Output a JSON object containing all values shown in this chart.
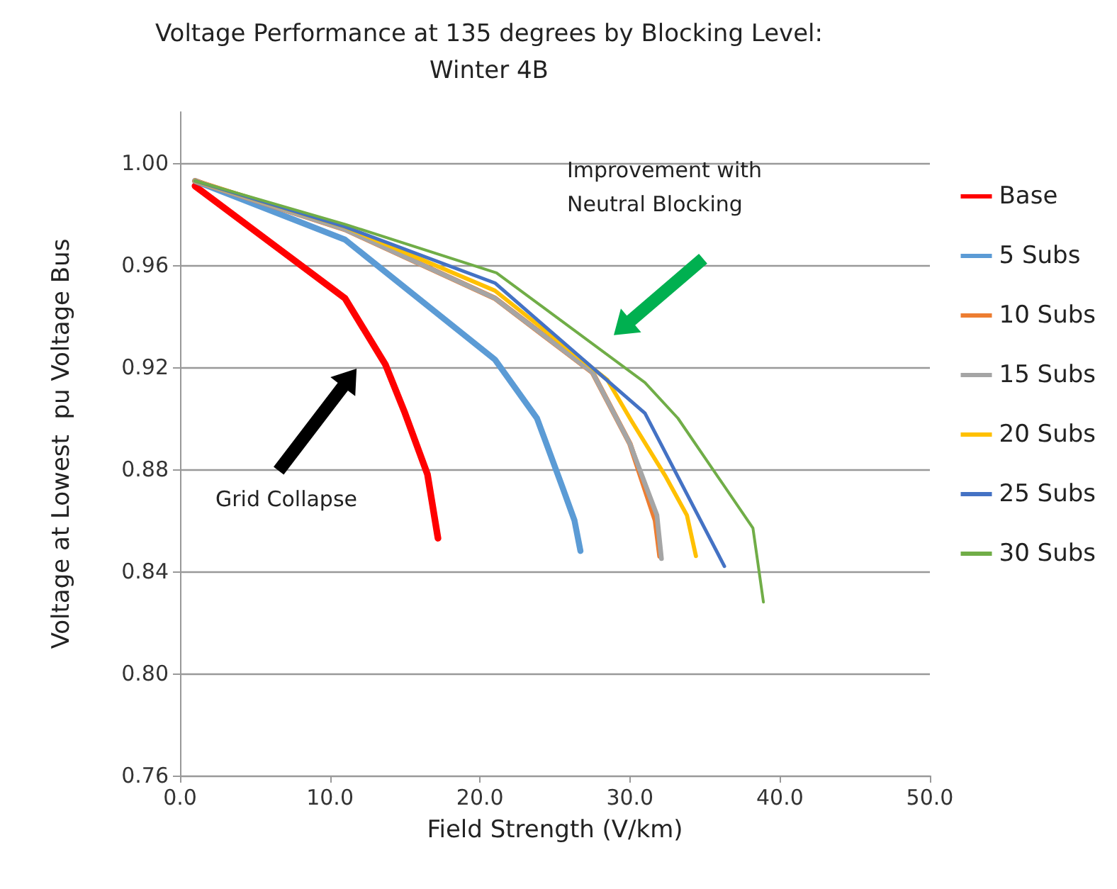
{
  "chart_data": {
    "type": "line",
    "title": "Voltage Performance at 135 degrees by Blocking Level:\nWinter 4B",
    "xlabel": "Field Strength (V/km)",
    "ylabel": "Voltage at Lowest  pu Voltage Bus",
    "xlim": [
      0,
      50
    ],
    "xticks": [
      {
        "value": 0,
        "label": "0.0"
      },
      {
        "value": 10,
        "label": "10.0"
      },
      {
        "value": 20,
        "label": "20.0"
      },
      {
        "value": 30,
        "label": "30.0"
      },
      {
        "value": 40,
        "label": "40.0"
      },
      {
        "value": 50,
        "label": "50.0"
      }
    ],
    "ylim": [
      0.76,
      1.02
    ],
    "yticks": [
      {
        "value": 0.76,
        "label": "0.76"
      },
      {
        "value": 0.8,
        "label": "0.80"
      },
      0.84,
      0.88,
      0.92,
      0.96,
      {
        "value": 1.0,
        "label": "1.00"
      }
    ],
    "grid": "y",
    "legend": "right",
    "marker": "none",
    "line_style": "solid",
    "annotations": [
      "Grid Collapse",
      "Improvement with\nNeutral Blocking"
    ],
    "series": [
      {
        "name": "Base",
        "color": "#ff0000",
        "x": [
          1,
          11,
          13.7,
          15,
          16.5,
          17.2
        ],
        "values": [
          0.991,
          0.947,
          0.921,
          0.902,
          0.878,
          0.853
        ]
      },
      {
        "name": "5 Subs",
        "color": "#5b9bd5",
        "x": [
          1,
          11,
          21,
          23.8,
          25.5,
          26.3,
          26.7
        ],
        "values": [
          0.993,
          0.97,
          0.923,
          0.9,
          0.873,
          0.86,
          0.848
        ]
      },
      {
        "name": "10 Subs",
        "color": "#ed7d31",
        "x": [
          1,
          11,
          21,
          27.5,
          30,
          31.7,
          32
        ],
        "values": [
          0.993,
          0.974,
          0.947,
          0.918,
          0.89,
          0.86,
          0.846
        ]
      },
      {
        "name": "15 Subs",
        "color": "#a5a5a5",
        "x": [
          1,
          11,
          21,
          27.5,
          30,
          31.8,
          32.1
        ],
        "values": [
          0.993,
          0.974,
          0.947,
          0.918,
          0.89,
          0.862,
          0.845
        ]
      },
      {
        "name": "20 Subs",
        "color": "#ffc000",
        "x": [
          1,
          11,
          21,
          28.5,
          30.1,
          32.4,
          33.8,
          34.4
        ],
        "values": [
          0.993,
          0.975,
          0.95,
          0.915,
          0.899,
          0.877,
          0.862,
          0.846
        ]
      },
      {
        "name": "25 Subs",
        "color": "#4472c4",
        "x": [
          1,
          11,
          21,
          31,
          36.3
        ],
        "values": [
          0.993,
          0.975,
          0.953,
          0.902,
          0.842
        ]
      },
      {
        "name": "30 Subs",
        "color": "#70ad47",
        "x": [
          1,
          11,
          21.1,
          31,
          33.2,
          38.2,
          38.9
        ],
        "values": [
          0.993,
          0.976,
          0.957,
          0.914,
          0.9,
          0.857,
          0.828
        ]
      }
    ]
  }
}
